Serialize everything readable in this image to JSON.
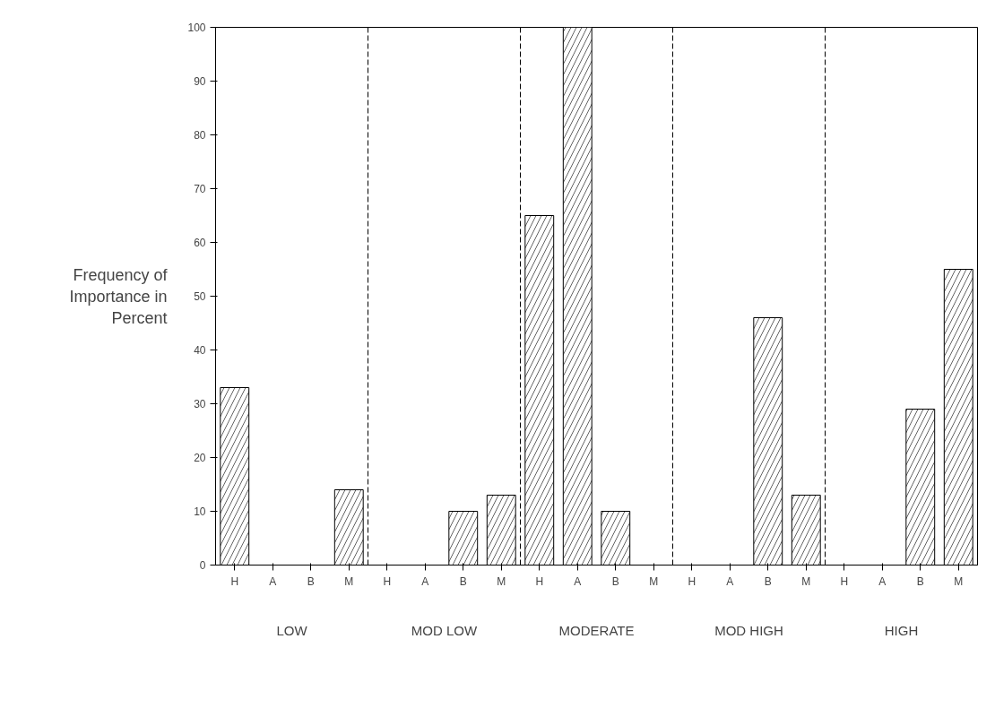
{
  "chart_data": {
    "type": "bar",
    "ylabel": "Frequency of Importance in Percent",
    "categories": [
      "H",
      "A",
      "B",
      "M",
      "H",
      "A",
      "B",
      "M",
      "H",
      "A",
      "B",
      "M",
      "H",
      "A",
      "B",
      "M",
      "H",
      "A",
      "B",
      "M"
    ],
    "values": [
      33,
      0,
      0,
      14,
      0,
      0,
      10,
      13,
      65,
      100,
      10,
      0,
      0,
      0,
      46,
      13,
      0,
      0,
      29,
      55
    ],
    "color": "#ffffff",
    "annotations": [
      "LOW",
      "MOD LOW",
      "MODERATE",
      "MOD HIGH",
      "HIGH"
    ],
    "ylim": [
      0,
      100
    ],
    "yticks": [
      0,
      10,
      20,
      30,
      40,
      50,
      60,
      70,
      80,
      90,
      100
    ],
    "grid": false
  }
}
